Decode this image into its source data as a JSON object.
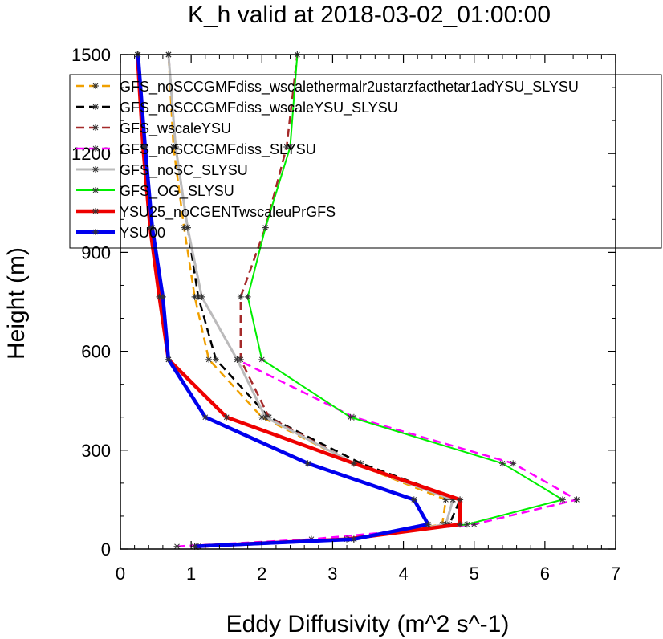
{
  "chart_data": {
    "type": "line",
    "title": "K_h valid at 2018-03-02_01:00:00",
    "xlabel": "Eddy Diffusivity (m^2 s^-1)",
    "ylabel": "Height (m)",
    "xlim": [
      0,
      7
    ],
    "ylim": [
      0,
      1500
    ],
    "xticks": [
      0,
      1,
      2,
      3,
      4,
      5,
      6,
      7
    ],
    "yticks": [
      0,
      300,
      600,
      900,
      1200,
      1500
    ],
    "grid": false,
    "legend_position": "top-right",
    "heights": [
      8,
      30,
      75,
      150,
      260,
      400,
      575,
      765,
      975,
      1220,
      1500
    ],
    "series": [
      {
        "name": "GFS_noSCCGMFdiss_wscalethermalr2ustarzfacthetar1adYSU_SLYSU",
        "color": "#f0a000",
        "dash": "10,6",
        "width": 2.5,
        "x": [
          1.1,
          3.3,
          4.55,
          4.6,
          3.3,
          2.0,
          1.25,
          1.05,
          0.9,
          0.75,
          0.68
        ]
      },
      {
        "name": "GFS_noSCCGMFdiss_wscaleYSU_SLYSU",
        "color": "#000000",
        "dash": "10,6",
        "width": 2.5,
        "x": [
          1.1,
          3.3,
          4.65,
          4.8,
          3.4,
          2.1,
          1.35,
          1.1,
          0.95,
          0.78,
          0.68
        ]
      },
      {
        "name": "GFS_wscaleYSU",
        "color": "#a52a2a",
        "dash": "10,6",
        "width": 2.5,
        "x": [
          1.1,
          3.3,
          4.6,
          4.7,
          3.3,
          2.1,
          1.7,
          1.7,
          2.05,
          2.35,
          2.5
        ]
      },
      {
        "name": "GFS_noSCCGMFdiss_SLYSU",
        "color": "#ff00ff",
        "dash": "10,6",
        "width": 2.5,
        "x": [
          0.8,
          2.7,
          5.0,
          6.45,
          5.55,
          3.3,
          1.65,
          1.15,
          0.95,
          0.78,
          0.68
        ]
      },
      {
        "name": "GFS_noSC_SLYSU",
        "color": "#bbbbbb",
        "dash": "",
        "width": 3,
        "x": [
          1.1,
          3.3,
          4.6,
          4.7,
          3.3,
          2.05,
          1.65,
          1.15,
          0.95,
          0.78,
          0.68
        ]
      },
      {
        "name": "GFS_OG_SLYSU",
        "color": "#00ee00",
        "dash": "",
        "width": 2,
        "x": [
          1.1,
          3.2,
          4.9,
          6.25,
          5.4,
          3.25,
          2.0,
          1.8,
          2.05,
          2.4,
          2.5
        ]
      },
      {
        "name": "YSU25_noCGENTwscaleuPrGFS",
        "color": "#ee0000",
        "dash": "",
        "width": 4.5,
        "x": [
          1.05,
          3.2,
          4.8,
          4.8,
          3.3,
          1.5,
          0.68,
          0.55,
          0.42,
          0.32,
          0.24
        ]
      },
      {
        "name": "YSU00",
        "color": "#0000ee",
        "dash": "",
        "width": 4.5,
        "x": [
          1.05,
          3.3,
          4.35,
          4.15,
          2.65,
          1.2,
          0.68,
          0.6,
          0.45,
          0.35,
          0.25
        ]
      }
    ]
  }
}
